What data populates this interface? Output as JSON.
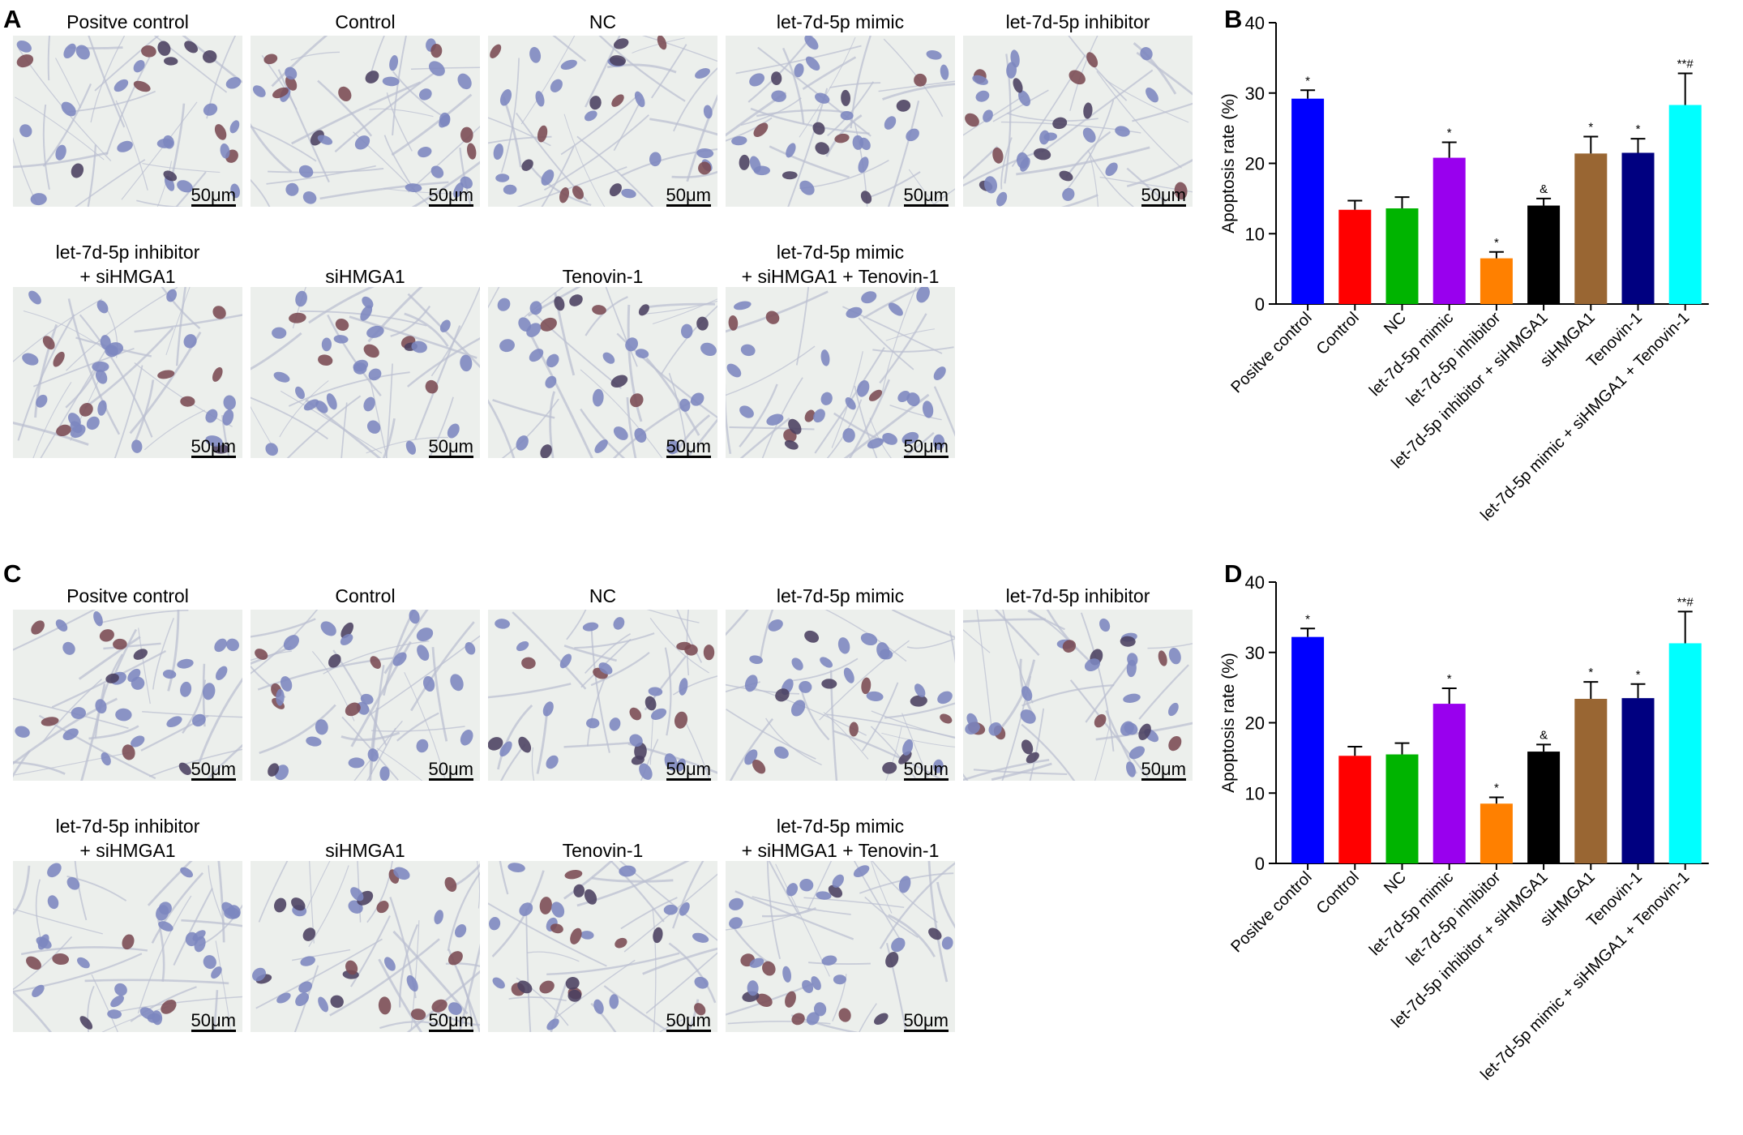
{
  "panels": [
    {
      "letter": "A",
      "type": "micrographs",
      "scale_label": "50μm",
      "captions": [
        "Positve control",
        "Control",
        "NC",
        "let-7d-5p mimic",
        "let-7d-5p inhibitor",
        "let-7d-5p inhibitor\n+ siHMGA1",
        "siHMGA1",
        "Tenovin-1",
        "let-7d-5p mimic\n+ siHMGA1 + Tenovin-1"
      ]
    },
    {
      "letter": "B",
      "type": "chart"
    },
    {
      "letter": "C",
      "type": "micrographs",
      "scale_label": "50μm",
      "captions": [
        "Positve control",
        "Control",
        "NC",
        "let-7d-5p mimic",
        "let-7d-5p inhibitor",
        "let-7d-5p inhibitor\n+ siHMGA1",
        "siHMGA1",
        "Tenovin-1",
        "let-7d-5p mimic\n+ siHMGA1 + Tenovin-1"
      ]
    },
    {
      "letter": "D",
      "type": "chart"
    }
  ],
  "cell_colors": {
    "blue": "#7c86bf",
    "brown": "#7a4a52",
    "dark": "#4a4060",
    "background": "#ecefec",
    "fiber": "#b9bed0"
  },
  "chart_data": [
    {
      "panel": "B",
      "type": "bar",
      "categories": [
        "Positve control",
        "Control",
        "NC",
        "let-7d-5p mimic",
        "let-7d-5p inhibitor",
        "let-7d-5p inhibitor + siHMGA1",
        "siHMGA1",
        "Tenovin-1",
        "let-7d-5p mimic + siHMGA1 + Tenovin-1"
      ],
      "values": [
        29.2,
        13.4,
        13.6,
        20.8,
        6.5,
        14.0,
        21.4,
        21.5,
        28.3
      ],
      "errors": [
        1.2,
        1.3,
        1.6,
        2.2,
        0.9,
        1.0,
        2.4,
        2.0,
        4.5
      ],
      "annotations": [
        "*",
        "",
        "",
        "*",
        "*",
        "&",
        "*",
        "*",
        "**#"
      ],
      "colors": [
        "#0000ff",
        "#ff0000",
        "#00b400",
        "#9900ee",
        "#ff8000",
        "#000000",
        "#996633",
        "#000080",
        "#00ffff"
      ],
      "ylabel": "Apoptosis rate (%)",
      "xlabel": "",
      "title": "",
      "ylim": [
        0,
        40
      ],
      "yticks": [
        0,
        10,
        20,
        30,
        40
      ],
      "grid": false
    },
    {
      "panel": "D",
      "type": "bar",
      "categories": [
        "Positve control",
        "Control",
        "NC",
        "let-7d-5p mimic",
        "let-7d-5p inhibitor",
        "let-7d-5p inhibitor + siHMGA1",
        "siHMGA1",
        "Tenovin-1",
        "let-7d-5p mimic + siHMGA1 + Tenovin-1"
      ],
      "values": [
        32.2,
        15.3,
        15.5,
        22.7,
        8.5,
        15.9,
        23.4,
        23.5,
        31.3
      ],
      "errors": [
        1.2,
        1.3,
        1.6,
        2.2,
        0.9,
        1.0,
        2.4,
        2.0,
        4.5
      ],
      "annotations": [
        "*",
        "",
        "",
        "*",
        "*",
        "&",
        "*",
        "*",
        "**#"
      ],
      "colors": [
        "#0000ff",
        "#ff0000",
        "#00b400",
        "#9900ee",
        "#ff8000",
        "#000000",
        "#996633",
        "#000080",
        "#00ffff"
      ],
      "ylabel": "Apoptosis rate (%)",
      "xlabel": "",
      "title": "",
      "ylim": [
        0,
        40
      ],
      "yticks": [
        0,
        10,
        20,
        30,
        40
      ],
      "grid": false
    }
  ]
}
